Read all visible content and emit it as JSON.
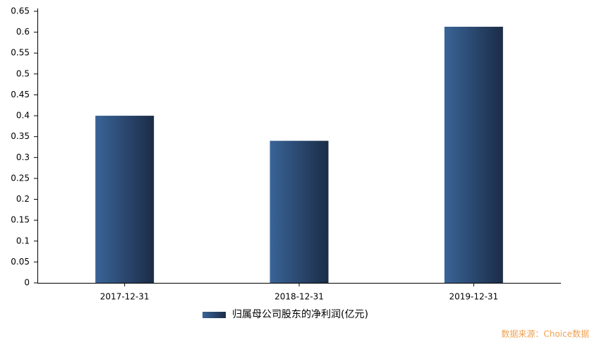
{
  "chart_data": {
    "type": "bar",
    "categories": [
      "2017-12-31",
      "2018-12-31",
      "2019-12-31"
    ],
    "series": [
      {
        "name": "归属母公司股东的净利润(亿元)",
        "color": "#3a6497",
        "values": [
          0.4,
          0.34,
          0.613
        ]
      }
    ],
    "ylim": [
      0,
      0.65
    ],
    "yticks": [
      0,
      0.05,
      0.1,
      0.15,
      0.2,
      0.25,
      0.3,
      0.35,
      0.4,
      0.45,
      0.5,
      0.55,
      0.6,
      0.65
    ],
    "grid": false,
    "legend": "bottom",
    "source": "数据来源：Choice数据"
  }
}
